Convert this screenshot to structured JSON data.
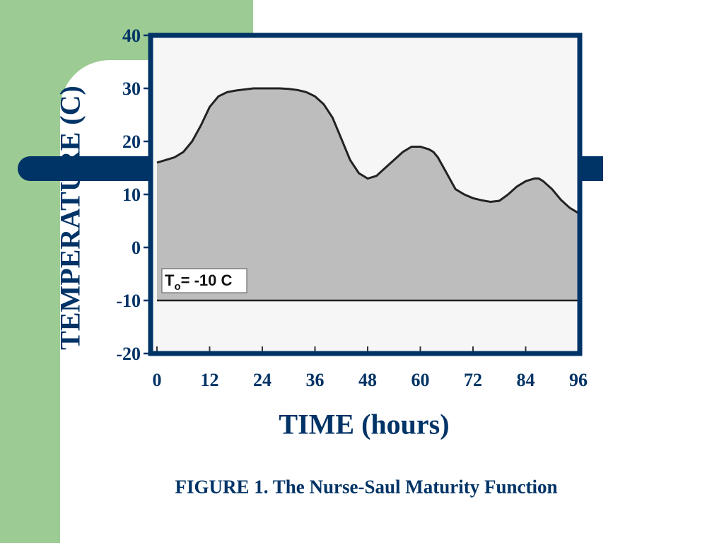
{
  "caption": "FIGURE 1.  The Nurse-Saul Maturity Function",
  "colors": {
    "background": "#ffffff",
    "accent_green": "#9ccc93",
    "navy": "#003366",
    "curve": "#222222",
    "fill": "#bdbdbd"
  },
  "chart_data": {
    "type": "area",
    "xlabel": "TIME (hours)",
    "ylabel": "TEMPERATURE (C)",
    "xlim": [
      0,
      96
    ],
    "ylim": [
      -20,
      40
    ],
    "x_ticks": [
      "0",
      "12",
      "24",
      "36",
      "48",
      "60",
      "72",
      "84",
      "96"
    ],
    "y_ticks": [
      "40",
      "30",
      "20",
      "10",
      "0",
      "-10",
      "-20"
    ],
    "datum_label": "T",
    "datum_subscript": "o",
    "datum_text": "= -10 C",
    "datum_value": -10,
    "series": [
      {
        "x": [
          0,
          2,
          4,
          6,
          8,
          10,
          12,
          14,
          16,
          18,
          20,
          22,
          24,
          26,
          28,
          30,
          32,
          34,
          36,
          38,
          40,
          42,
          44,
          46,
          48,
          50,
          52,
          54,
          56,
          58,
          60,
          62,
          63,
          64,
          66,
          68,
          70,
          72,
          74,
          76,
          78,
          80,
          82,
          84,
          86,
          87,
          88,
          90,
          92,
          94,
          96
        ],
        "y": [
          16,
          16.5,
          17,
          18,
          20,
          23,
          26.5,
          28.5,
          29.3,
          29.6,
          29.8,
          30,
          30,
          30,
          30,
          29.9,
          29.7,
          29.3,
          28.5,
          27,
          24.5,
          20.5,
          16.5,
          14,
          13,
          13.5,
          15,
          16.5,
          18,
          19,
          19,
          18.5,
          18,
          17,
          14,
          11,
          10,
          9.3,
          8.9,
          8.6,
          8.8,
          10,
          11.5,
          12.5,
          13,
          13,
          12.5,
          11,
          9,
          7.5,
          6.5
        ]
      }
    ]
  }
}
